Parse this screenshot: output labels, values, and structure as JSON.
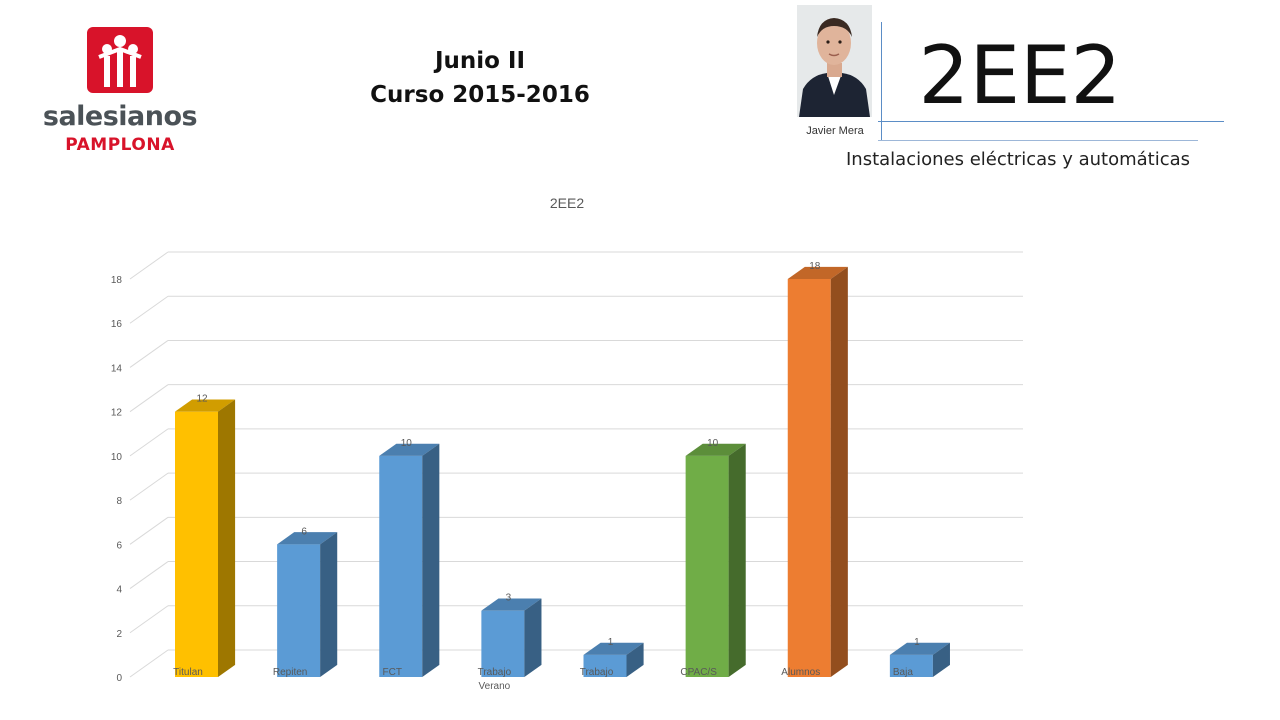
{
  "logo": {
    "name": "salesianos",
    "city": "PAMPLONA",
    "colors": {
      "red": "#d8132a",
      "gray": "#4b5257"
    }
  },
  "header": {
    "line1": "Junio II",
    "line2": "Curso 2015-2016",
    "class_code": "2EE2",
    "teacher": "Javier Mera",
    "subject": "Instalaciones eléctricas y automáticas"
  },
  "chart_data": {
    "type": "bar",
    "title": "2EE2",
    "categories": [
      "Titulan",
      "Repiten",
      "FCT",
      "Trabajo Verano",
      "Trabajo",
      "CPAC/S",
      "Alumnos",
      "Baja"
    ],
    "values": [
      12,
      6,
      10,
      3,
      1,
      10,
      18,
      1
    ],
    "colors": [
      "#ffc000",
      "#5b9bd5",
      "#5b9bd5",
      "#5b9bd5",
      "#5b9bd5",
      "#70ad47",
      "#ed7d31",
      "#5b9bd5"
    ],
    "ylim": [
      0,
      18
    ],
    "yticks": [
      0,
      2,
      4,
      6,
      8,
      10,
      12,
      14,
      16,
      18
    ],
    "grid": true,
    "data_labels": true,
    "legend": "none",
    "style": "3d-column"
  }
}
